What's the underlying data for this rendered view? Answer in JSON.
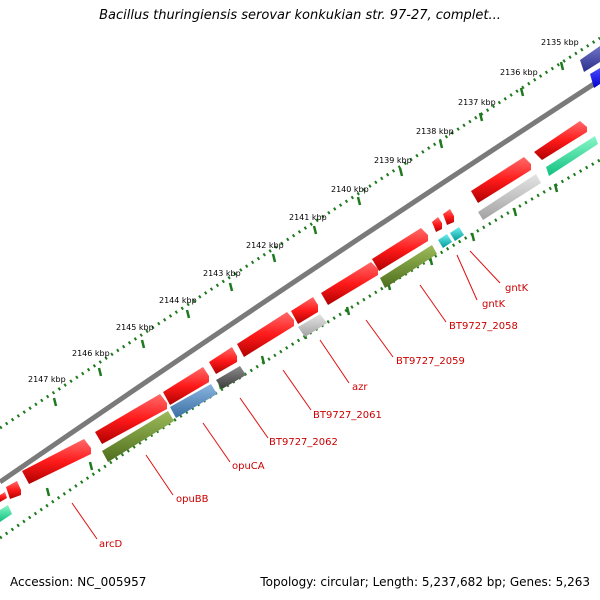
{
  "title": "Bacillus thuringiensis serovar konkukian str. 97-27, complet...",
  "footer": {
    "accession": "Accession: NC_005957",
    "summary": "Topology: circular; Length: 5,237,682 bp; Genes: 5,263"
  },
  "colors": {
    "backbone": "#7a7a7a",
    "ruler_ticks": "#1f7a1f",
    "label_red": "#cc0000",
    "leader_line": "#e01010"
  },
  "ruler_labels": [
    "2135 kbp",
    "2136 kbp",
    "2137 kbp",
    "2138 kbp",
    "2139 kbp",
    "2140 kbp",
    "2141 kbp",
    "2142 kbp",
    "2143 kbp",
    "2144 kbp",
    "2145 kbp",
    "2146 kbp",
    "2147 kbp"
  ],
  "gene_labels": [
    "gntK",
    "gntK",
    "BT9727_2058",
    "BT9727_2059",
    "azr",
    "BT9727_2061",
    "BT9727_2062",
    "opuCA",
    "opuBB",
    "arcD"
  ]
}
